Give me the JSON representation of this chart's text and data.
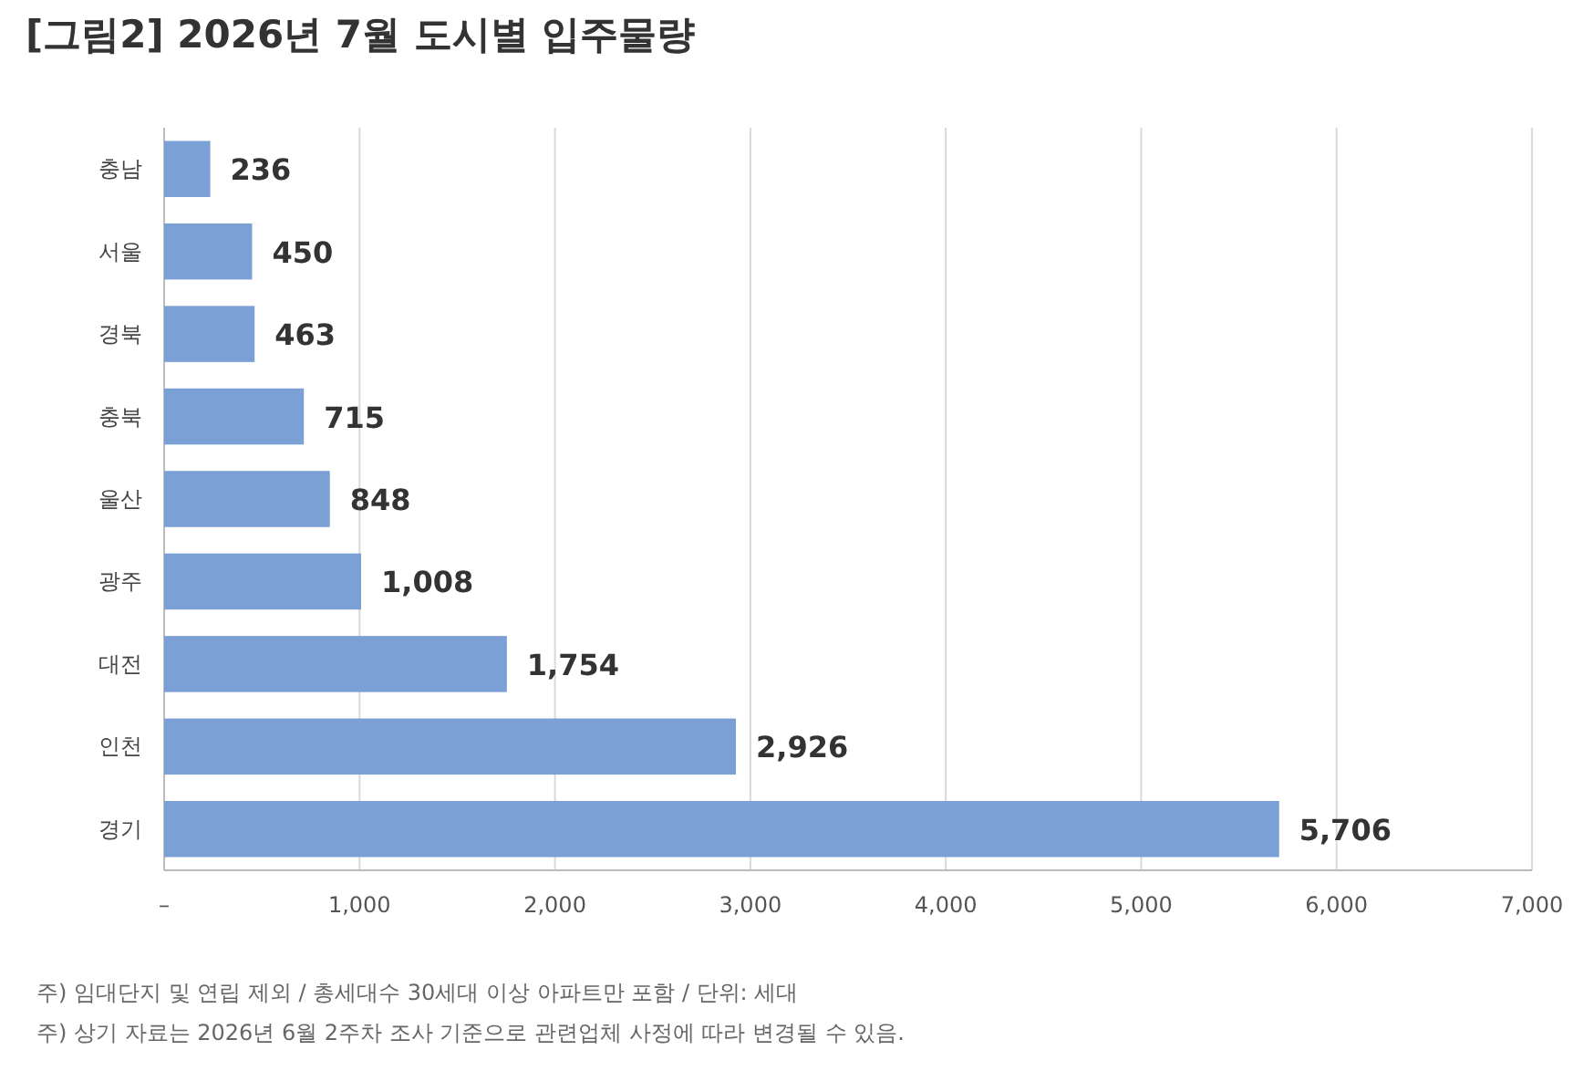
{
  "chart_data": {
    "type": "bar",
    "orientation": "horizontal",
    "title": "[그림2] 2026년 7월 도시별 입주물량",
    "categories": [
      "충남",
      "서울",
      "경북",
      "충북",
      "울산",
      "광주",
      "대전",
      "인천",
      "경기"
    ],
    "values": [
      236,
      450,
      463,
      715,
      848,
      1008,
      1754,
      2926,
      5706
    ],
    "value_labels": [
      "236",
      "450",
      "463",
      "715",
      "848",
      "1,008",
      "1,754",
      "2,926",
      "5,706"
    ],
    "color": "#7ba0d6",
    "xlim": [
      0,
      7000
    ],
    "xticks": [
      {
        "value": 0,
        "label": "–"
      },
      {
        "value": 1000,
        "label": "1,000"
      },
      {
        "value": 2000,
        "label": "2,000"
      },
      {
        "value": 3000,
        "label": "3,000"
      },
      {
        "value": 4000,
        "label": "4,000"
      },
      {
        "value": 5000,
        "label": "5,000"
      },
      {
        "value": 6000,
        "label": "6,000"
      },
      {
        "value": 7000,
        "label": "7,000"
      }
    ],
    "grid": "x",
    "annotations": [
      "주) 임대단지 및 연립 제외 / 총세대수 30세대 이상 아파트만 포함 / 단위: 세대",
      "주) 상기 자료는 2026년 6월 2주차 조사 기준으로 관련업체 사정에 따라 변경될 수 있음."
    ]
  }
}
